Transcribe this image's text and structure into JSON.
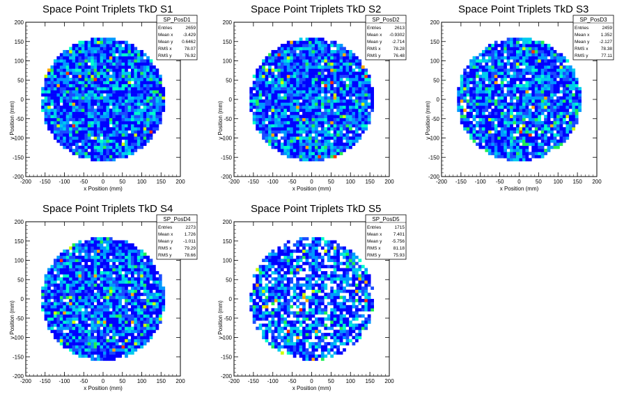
{
  "chart_data": [
    {
      "type": "heatmap",
      "title": "Space Point Triplets TkD S1",
      "xlabel": "x Position (mm)",
      "ylabel": "y Position (mm)",
      "xlim": [
        -200,
        200
      ],
      "ylim": [
        -200,
        200
      ],
      "xticks": [
        -200,
        -150,
        -100,
        -50,
        0,
        50,
        100,
        150,
        200
      ],
      "yticks": [
        -200,
        -150,
        -100,
        -50,
        0,
        50,
        100,
        150,
        200
      ],
      "fill_radius_mm": 160,
      "stats": {
        "name": "SP_PosD1",
        "rows": [
          {
            "label": "Entries",
            "value": "2659"
          },
          {
            "label": "Mean x",
            "value": "-3.429"
          },
          {
            "label": "Mean y",
            "value": "0.6462"
          },
          {
            "label": "RMS x",
            "value": "78.07"
          },
          {
            "label": "RMS y",
            "value": "76.92"
          }
        ]
      }
    },
    {
      "type": "heatmap",
      "title": "Space Point Triplets TkD S2",
      "xlabel": "x Position (mm)",
      "ylabel": "y Position (mm)",
      "xlim": [
        -200,
        200
      ],
      "ylim": [
        -200,
        200
      ],
      "xticks": [
        -200,
        -150,
        -100,
        -50,
        0,
        50,
        100,
        150,
        200
      ],
      "yticks": [
        -200,
        -150,
        -100,
        -50,
        0,
        50,
        100,
        150,
        200
      ],
      "fill_radius_mm": 160,
      "stats": {
        "name": "SP_PosD2",
        "rows": [
          {
            "label": "Entries",
            "value": "2613"
          },
          {
            "label": "Mean x",
            "value": "-0.9302"
          },
          {
            "label": "Mean y",
            "value": "-2.714"
          },
          {
            "label": "RMS x",
            "value": "78.28"
          },
          {
            "label": "RMS y",
            "value": "76.48"
          }
        ]
      }
    },
    {
      "type": "heatmap",
      "title": "Space Point Triplets TkD S3",
      "xlabel": "x Position (mm)",
      "ylabel": "y Position (mm)",
      "xlim": [
        -200,
        200
      ],
      "ylim": [
        -200,
        200
      ],
      "xticks": [
        -200,
        -150,
        -100,
        -50,
        0,
        50,
        100,
        150,
        200
      ],
      "yticks": [
        -200,
        -150,
        -100,
        -50,
        0,
        50,
        100,
        150,
        200
      ],
      "fill_radius_mm": 160,
      "stats": {
        "name": "SP_PosD3",
        "rows": [
          {
            "label": "Entries",
            "value": "2459"
          },
          {
            "label": "Mean x",
            "value": "1.352"
          },
          {
            "label": "Mean y",
            "value": "-2.127"
          },
          {
            "label": "RMS x",
            "value": "78.38"
          },
          {
            "label": "RMS y",
            "value": "77.11"
          }
        ]
      }
    },
    {
      "type": "heatmap",
      "title": "Space Point Triplets TkD S4",
      "xlabel": "x Position (mm)",
      "ylabel": "y Position (mm)",
      "xlim": [
        -200,
        200
      ],
      "ylim": [
        -200,
        200
      ],
      "xticks": [
        -200,
        -150,
        -100,
        -50,
        0,
        50,
        100,
        150,
        200
      ],
      "yticks": [
        -200,
        -150,
        -100,
        -50,
        0,
        50,
        100,
        150,
        200
      ],
      "fill_radius_mm": 160,
      "stats": {
        "name": "SP_PosD4",
        "rows": [
          {
            "label": "Entries",
            "value": "2273"
          },
          {
            "label": "Mean x",
            "value": "1.726"
          },
          {
            "label": "Mean y",
            "value": "-1.011"
          },
          {
            "label": "RMS x",
            "value": "79.29"
          },
          {
            "label": "RMS y",
            "value": "78.66"
          }
        ]
      }
    },
    {
      "type": "heatmap",
      "title": "Space Point Triplets TkD S5",
      "xlabel": "x Position (mm)",
      "ylabel": "y Position (mm)",
      "xlim": [
        -200,
        200
      ],
      "ylim": [
        -200,
        200
      ],
      "xticks": [
        -200,
        -150,
        -100,
        -50,
        0,
        50,
        100,
        150,
        200
      ],
      "yticks": [
        -200,
        -150,
        -100,
        -50,
        0,
        50,
        100,
        150,
        200
      ],
      "fill_radius_mm": 160,
      "stats": {
        "name": "SP_PosD5",
        "rows": [
          {
            "label": "Entries",
            "value": "1715"
          },
          {
            "label": "Mean x",
            "value": "7.401"
          },
          {
            "label": "Mean y",
            "value": "-5.756"
          },
          {
            "label": "RMS x",
            "value": "81.18"
          },
          {
            "label": "RMS y",
            "value": "75.93"
          }
        ]
      }
    }
  ],
  "colors": {
    "palette": [
      "#0000ff",
      "#1a4bff",
      "#0099ff",
      "#00ccee",
      "#00ffcc",
      "#22ee55",
      "#ccff00",
      "#ffaa00",
      "#ff3300"
    ]
  }
}
